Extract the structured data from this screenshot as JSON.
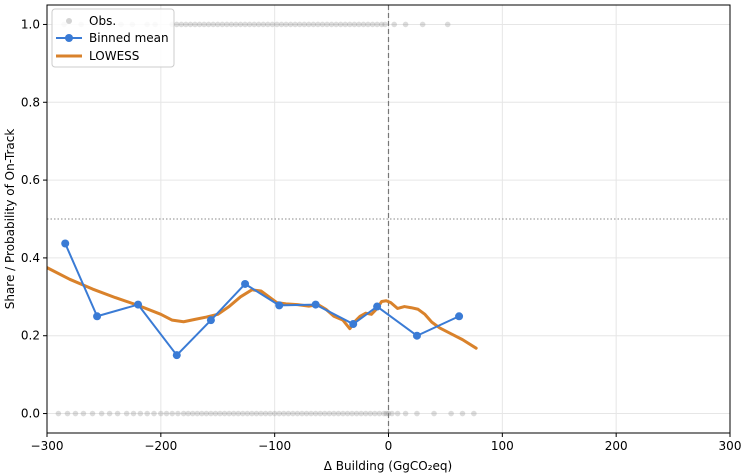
{
  "chart_data": {
    "type": "scatter",
    "title": "",
    "xlabel": "Δ Building (GgCO₂eq)",
    "ylabel": "Share / Probability of On-Track",
    "xlim": [
      -300,
      300
    ],
    "ylim": [
      -0.05,
      1.05
    ],
    "xticks": [
      -300,
      -200,
      -100,
      0,
      100,
      200,
      300
    ],
    "xtick_labels": [
      "−300",
      "−200",
      "−100",
      "0",
      "100",
      "200",
      "300"
    ],
    "yticks": [
      0.0,
      0.2,
      0.4,
      0.6,
      0.8,
      1.0
    ],
    "ytick_labels": [
      "0.0",
      "0.2",
      "0.4",
      "0.6",
      "0.8",
      "1.0"
    ],
    "grid": true,
    "legend_position": "top-left",
    "reference_lines": {
      "vertical_x": 0,
      "horizontal_y": 0.5
    },
    "series": [
      {
        "name": "Obs.",
        "kind": "scatter",
        "color": "#808080",
        "x_at_one": [
          -285,
          -270,
          -258,
          -245,
          -235,
          -225,
          -212,
          -205,
          -190,
          -186,
          -182,
          -178,
          -174,
          -170,
          -166,
          -162,
          -158,
          -154,
          -150,
          -146,
          -142,
          -138,
          -134,
          -130,
          -126,
          -122,
          -118,
          -114,
          -110,
          -106,
          -102,
          -98,
          -94,
          -90,
          -86,
          -82,
          -78,
          -74,
          -70,
          -66,
          -62,
          -58,
          -54,
          -50,
          -46,
          -42,
          -38,
          -34,
          -30,
          -26,
          -22,
          -18,
          -14,
          -10,
          -6,
          -3,
          5,
          15,
          30,
          52
        ],
        "x_at_zero": [
          -290,
          -282,
          -275,
          -268,
          -260,
          -252,
          -245,
          -238,
          -230,
          -224,
          -218,
          -212,
          -206,
          -200,
          -195,
          -190,
          -185,
          -180,
          -176,
          -172,
          -168,
          -164,
          -160,
          -156,
          -152,
          -148,
          -144,
          -140,
          -136,
          -132,
          -128,
          -124,
          -120,
          -116,
          -112,
          -108,
          -104,
          -100,
          -96,
          -92,
          -88,
          -84,
          -80,
          -76,
          -72,
          -68,
          -64,
          -60,
          -56,
          -52,
          -48,
          -44,
          -40,
          -36,
          -32,
          -28,
          -24,
          -20,
          -16,
          -12,
          -8,
          -4,
          -2,
          0,
          3,
          8,
          15,
          25,
          40,
          55,
          65,
          75
        ]
      },
      {
        "name": "Binned mean",
        "kind": "line-marker",
        "color": "#3a7bd5",
        "x": [
          -284,
          -256,
          -220,
          -186,
          -156,
          -126,
          -96,
          -64,
          -31,
          -10,
          25,
          62
        ],
        "y": [
          0.437,
          0.25,
          0.28,
          0.15,
          0.24,
          0.333,
          0.278,
          0.28,
          0.23,
          0.275,
          0.2,
          0.25
        ]
      },
      {
        "name": "LOWESS",
        "kind": "line",
        "color": "#d9822b",
        "x": [
          -300,
          -280,
          -260,
          -240,
          -220,
          -200,
          -190,
          -180,
          -170,
          -160,
          -150,
          -140,
          -130,
          -120,
          -112,
          -105,
          -98,
          -90,
          -80,
          -70,
          -62,
          -55,
          -48,
          -40,
          -34,
          -30,
          -25,
          -20,
          -15,
          -10,
          -6,
          -2,
          2,
          8,
          14,
          20,
          26,
          32,
          38,
          45,
          55,
          65,
          77
        ],
        "y": [
          0.375,
          0.345,
          0.32,
          0.298,
          0.278,
          0.255,
          0.24,
          0.236,
          0.242,
          0.248,
          0.255,
          0.275,
          0.3,
          0.318,
          0.315,
          0.3,
          0.285,
          0.282,
          0.28,
          0.276,
          0.28,
          0.268,
          0.25,
          0.24,
          0.218,
          0.235,
          0.25,
          0.258,
          0.255,
          0.27,
          0.288,
          0.29,
          0.285,
          0.27,
          0.275,
          0.272,
          0.268,
          0.255,
          0.235,
          0.22,
          0.205,
          0.19,
          0.168
        ]
      }
    ]
  }
}
